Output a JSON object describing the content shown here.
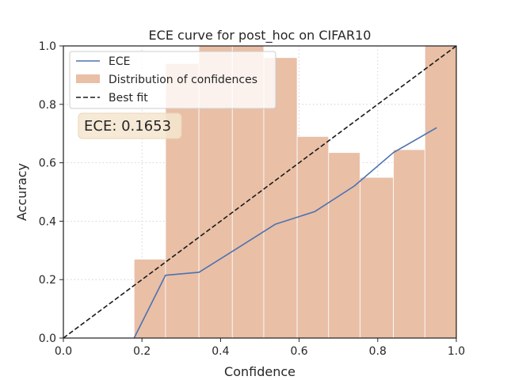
{
  "chart_data": {
    "type": "bar+line",
    "title": "ECE curve for post_hoc on CIFAR10",
    "xlabel": "Confidence",
    "ylabel": "Accuracy",
    "xlim": [
      0.0,
      1.0
    ],
    "ylim": [
      0.0,
      1.0
    ],
    "xticks": [
      "0.0",
      "0.2",
      "0.4",
      "0.6",
      "0.8",
      "1.0"
    ],
    "yticks": [
      "0.0",
      "0.2",
      "0.4",
      "0.6",
      "0.8",
      "1.0"
    ],
    "grid": true,
    "legend_position": "top-left",
    "legend": [
      "ECE",
      "Distribution of confidences",
      "Best fit"
    ],
    "annotation": "ECE: 0.1653",
    "histogram": {
      "name": "Distribution of confidences",
      "color": "#e9bfa6",
      "bins": [
        {
          "x0": 0.18,
          "x1": 0.26,
          "value": 0.27
        },
        {
          "x0": 0.26,
          "x1": 0.345,
          "value": 0.94
        },
        {
          "x0": 0.345,
          "x1": 0.43,
          "value": 1.0
        },
        {
          "x0": 0.43,
          "x1": 0.51,
          "value": 1.0
        },
        {
          "x0": 0.51,
          "x1": 0.595,
          "value": 0.96
        },
        {
          "x0": 0.595,
          "x1": 0.675,
          "value": 0.69
        },
        {
          "x0": 0.675,
          "x1": 0.755,
          "value": 0.635
        },
        {
          "x0": 0.755,
          "x1": 0.84,
          "value": 0.55
        },
        {
          "x0": 0.84,
          "x1": 0.92,
          "value": 0.645
        },
        {
          "x0": 0.92,
          "x1": 1.0,
          "value": 1.0
        }
      ]
    },
    "series": [
      {
        "name": "ECE",
        "color": "#4c72b0",
        "x": [
          0.18,
          0.26,
          0.345,
          0.44,
          0.54,
          0.64,
          0.74,
          0.84,
          0.95
        ],
        "y": [
          0.0,
          0.215,
          0.225,
          0.305,
          0.39,
          0.433,
          0.52,
          0.635,
          0.72
        ]
      },
      {
        "name": "Best fit",
        "color": "#1a1a1a",
        "dashed": true,
        "x": [
          0.0,
          1.0
        ],
        "y": [
          0.0,
          1.0
        ]
      }
    ]
  }
}
